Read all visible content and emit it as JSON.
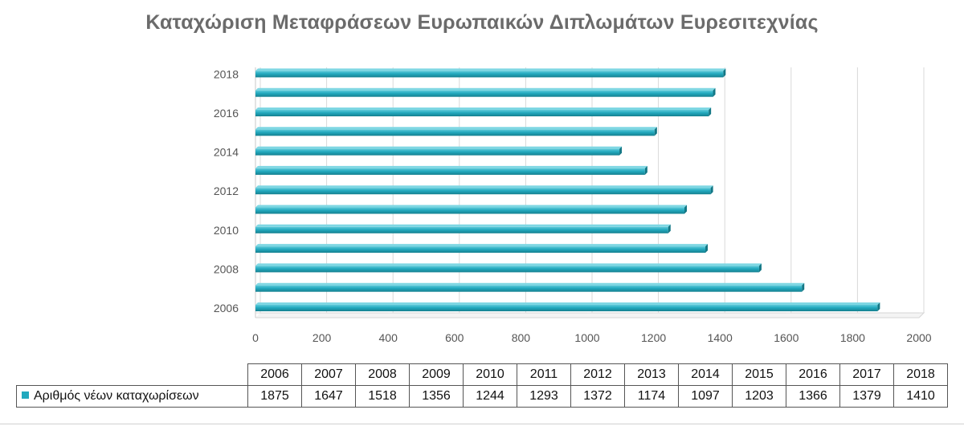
{
  "chart_data": {
    "type": "bar",
    "orientation": "horizontal",
    "title": "Καταχώριση Μεταφράσεων Ευρωπαικών Διπλωμάτων Ευρεσιτεχνίας",
    "categories": [
      "2006",
      "2007",
      "2008",
      "2009",
      "2010",
      "2011",
      "2012",
      "2013",
      "2014",
      "2015",
      "2016",
      "2017",
      "2018"
    ],
    "series": [
      {
        "name": "Αριθμός νέων καταχωρίσεων",
        "values": [
          1875,
          1647,
          1518,
          1356,
          1244,
          1293,
          1372,
          1174,
          1097,
          1203,
          1366,
          1379,
          1410
        ],
        "value_labels": [
          "1875",
          "1647",
          "1518",
          "1356",
          "1244",
          "1293",
          "1372",
          "1174",
          "1097",
          "1203",
          "1366",
          "1379",
          "1410"
        ]
      }
    ],
    "y_tick_labels": [
      "2006",
      "2008",
      "2010",
      "2012",
      "2014",
      "2016",
      "2018"
    ],
    "x_ticks": [
      0,
      200,
      400,
      600,
      800,
      1000,
      1200,
      1400,
      1600,
      1800,
      2000
    ],
    "x_tick_labels": [
      "0",
      "200",
      "400",
      "600",
      "800",
      "1000",
      "1200",
      "1400",
      "1600",
      "1800",
      "2000"
    ],
    "xlim": [
      0,
      2000
    ],
    "grid": true,
    "legend": "data table below chart",
    "bar_color": "#22a9be"
  }
}
